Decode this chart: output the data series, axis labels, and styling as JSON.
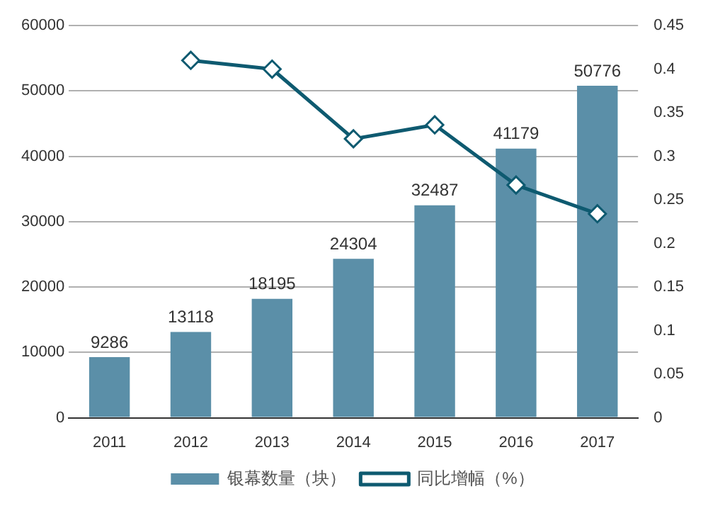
{
  "chart_data": {
    "type": "bar",
    "categories": [
      "2011",
      "2012",
      "2013",
      "2014",
      "2015",
      "2016",
      "2017"
    ],
    "series": [
      {
        "name": "银幕数量（块）",
        "color": "#5b8fa8",
        "values": [
          9286,
          13118,
          18195,
          24304,
          32487,
          41179,
          50776
        ],
        "value_labels": [
          "9286",
          "13118",
          "18195",
          "24304",
          "32487",
          "41179",
          "50776"
        ]
      },
      {
        "name": "同比增幅（%）",
        "type": "line",
        "axis": "y2",
        "color": "#0e5a70",
        "marker": "diamond",
        "values": [
          null,
          0.41,
          0.4,
          0.32,
          0.336,
          0.267,
          0.234
        ]
      }
    ],
    "ylim": [
      0,
      60000
    ],
    "yticks": [
      0,
      10000,
      20000,
      30000,
      40000,
      50000,
      60000
    ],
    "y2lim": [
      0,
      0.45
    ],
    "y2ticks": [
      0,
      0.05,
      0.1,
      0.15,
      0.2,
      0.25,
      0.3,
      0.35,
      0.4,
      0.45
    ],
    "grid": "y",
    "legend": "bottom"
  }
}
